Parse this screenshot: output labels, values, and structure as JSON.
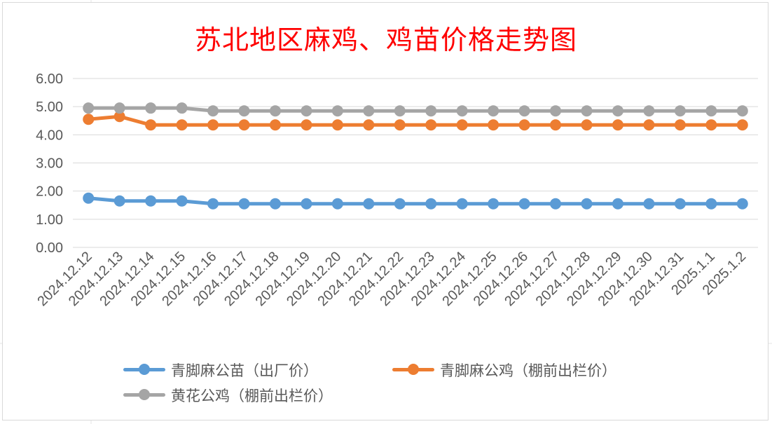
{
  "chart_data": {
    "type": "line",
    "title": "苏北地区麻鸡、鸡苗价格走势图",
    "xlabel": "",
    "ylabel": "",
    "ylim": [
      0,
      6
    ],
    "yticks": [
      "0.00",
      "1.00",
      "2.00",
      "3.00",
      "4.00",
      "5.00",
      "6.00"
    ],
    "grid": true,
    "legend_position": "bottom",
    "categories": [
      "2024.12.12",
      "2024.12.13",
      "2024.12.14",
      "2024.12.15",
      "2024.12.16",
      "2024.12.17",
      "2024.12.18",
      "2024.12.19",
      "2024.12.20",
      "2024.12.21",
      "2024.12.22",
      "2024.12.23",
      "2024.12.24",
      "2024.12.25",
      "2024.12.26",
      "2024.12.27",
      "2024.12.28",
      "2024.12.29",
      "2024.12.30",
      "2024.12.31",
      "2025.1.1",
      "2025.1.2"
    ],
    "series": [
      {
        "name": "青脚麻公苗（出厂价）",
        "color": "#5b9bd5",
        "values": [
          1.75,
          1.65,
          1.65,
          1.65,
          1.55,
          1.55,
          1.55,
          1.55,
          1.55,
          1.55,
          1.55,
          1.55,
          1.55,
          1.55,
          1.55,
          1.55,
          1.55,
          1.55,
          1.55,
          1.55,
          1.55,
          1.55
        ]
      },
      {
        "name": "青脚麻公鸡（棚前出栏价）",
        "color": "#ed7d31",
        "values": [
          4.55,
          4.65,
          4.35,
          4.35,
          4.35,
          4.35,
          4.35,
          4.35,
          4.35,
          4.35,
          4.35,
          4.35,
          4.35,
          4.35,
          4.35,
          4.35,
          4.35,
          4.35,
          4.35,
          4.35,
          4.35,
          4.35
        ]
      },
      {
        "name": "黄花公鸡（棚前出栏价）",
        "color": "#a5a5a5",
        "values": [
          4.95,
          4.95,
          4.95,
          4.95,
          4.85,
          4.85,
          4.85,
          4.85,
          4.85,
          4.85,
          4.85,
          4.85,
          4.85,
          4.85,
          4.85,
          4.85,
          4.85,
          4.85,
          4.85,
          4.85,
          4.85,
          4.85
        ]
      }
    ]
  }
}
